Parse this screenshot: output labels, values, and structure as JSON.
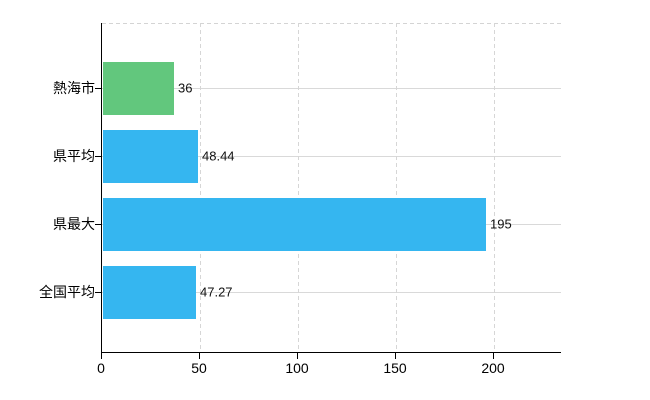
{
  "chart_data": {
    "type": "bar",
    "orientation": "horizontal",
    "title": "",
    "xlabel": "",
    "ylabel": "",
    "categories": [
      "熱海市",
      "県平均",
      "県最大",
      "全国平均"
    ],
    "values": [
      36,
      48.44,
      195,
      47.27
    ],
    "value_labels": [
      "36",
      "48.44",
      "195",
      "47.27"
    ],
    "bar_colors": [
      "#62c77d",
      "#35b6f0",
      "#35b6f0",
      "#35b6f0"
    ],
    "xlim": [
      0,
      234
    ],
    "x_ticks": [
      0,
      50,
      100,
      150,
      200
    ],
    "grid": {
      "vertical": "dashed",
      "horizontal": "solid",
      "top_border": "dashed"
    },
    "legend": "none",
    "colors": {
      "axis": "#000000",
      "gridline": "#d9d9d9",
      "text": "#000000",
      "background": "#ffffff"
    }
  }
}
